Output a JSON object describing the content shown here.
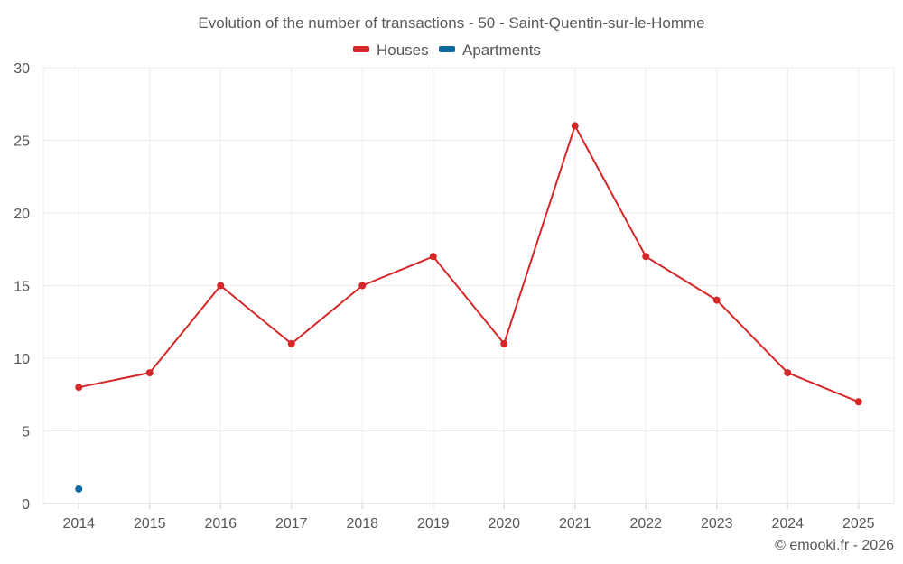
{
  "chart_data": {
    "type": "line",
    "title": "Evolution of the number of transactions - 50 - Saint-Quentin-sur-le-Homme",
    "categories": [
      "2014",
      "2015",
      "2016",
      "2017",
      "2018",
      "2019",
      "2020",
      "2021",
      "2022",
      "2023",
      "2024",
      "2025"
    ],
    "series": [
      {
        "name": "Houses",
        "color": "#d62728",
        "values": [
          8,
          9,
          15,
          11,
          15,
          17,
          11,
          26,
          17,
          14,
          9,
          7
        ]
      },
      {
        "name": "Apartments",
        "color": "#0a6aa1",
        "values": [
          1,
          null,
          null,
          null,
          null,
          null,
          null,
          null,
          null,
          null,
          null,
          null
        ]
      }
    ],
    "ylim": [
      0,
      30
    ],
    "yticks": [
      0,
      5,
      10,
      15,
      20,
      25,
      30
    ],
    "grid": true,
    "legend_position": "top-center"
  },
  "credit": "© emooki.fr - 2026"
}
